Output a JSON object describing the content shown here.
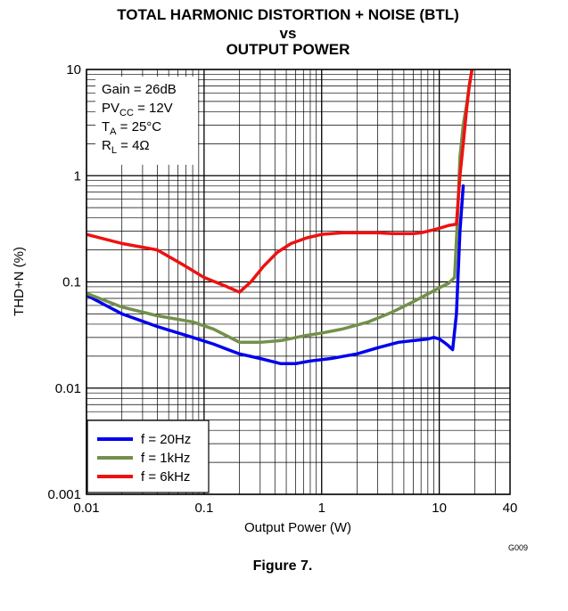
{
  "chart_data": {
    "type": "line",
    "title_lines": [
      "TOTAL HARMONIC DISTORTION + NOISE (BTL)",
      "vs",
      "OUTPUT POWER"
    ],
    "xlabel": "Output Power (W)",
    "ylabel": "THD+N (%)",
    "x_scale": "log",
    "y_scale": "log",
    "xlim": [
      0.01,
      40
    ],
    "ylim": [
      0.001,
      10
    ],
    "x_ticks": [
      0.01,
      0.1,
      1,
      10,
      40
    ],
    "x_tick_labels": [
      "0.01",
      "0.1",
      "1",
      "10",
      "40"
    ],
    "y_ticks": [
      0.001,
      0.01,
      0.1,
      1,
      10
    ],
    "y_tick_labels": [
      "0.001",
      "0.01",
      "0.1",
      "1",
      "10"
    ],
    "grid": true,
    "legend_position": "bottom-left",
    "conditions": {
      "gain": {
        "prefix": "Gain = ",
        "value": "26dB"
      },
      "pvcc": {
        "main": "PV",
        "sub": "CC",
        "rest": " = 12V"
      },
      "ta": {
        "main": "T",
        "sub": "A",
        "rest": " = 25°C"
      },
      "rl": {
        "main": "R",
        "sub": "L",
        "rest": " = 4Ω"
      }
    },
    "series": [
      {
        "name": "f = 20Hz",
        "color": "#0000ee",
        "points": [
          [
            0.01,
            0.075
          ],
          [
            0.02,
            0.05
          ],
          [
            0.04,
            0.038
          ],
          [
            0.08,
            0.03
          ],
          [
            0.12,
            0.026
          ],
          [
            0.2,
            0.021
          ],
          [
            0.3,
            0.019
          ],
          [
            0.45,
            0.017
          ],
          [
            0.6,
            0.017
          ],
          [
            0.8,
            0.018
          ],
          [
            1.2,
            0.019
          ],
          [
            2,
            0.021
          ],
          [
            3,
            0.024
          ],
          [
            4.5,
            0.027
          ],
          [
            6,
            0.028
          ],
          [
            8,
            0.029
          ],
          [
            9,
            0.03
          ],
          [
            10,
            0.029
          ],
          [
            11,
            0.027
          ],
          [
            12,
            0.025
          ],
          [
            13,
            0.023
          ],
          [
            14,
            0.05
          ],
          [
            15,
            0.3
          ],
          [
            16,
            0.8
          ]
        ]
      },
      {
        "name": "f = 1kHz",
        "color": "#73904a",
        "points": [
          [
            0.01,
            0.078
          ],
          [
            0.02,
            0.058
          ],
          [
            0.04,
            0.048
          ],
          [
            0.08,
            0.042
          ],
          [
            0.12,
            0.036
          ],
          [
            0.2,
            0.027
          ],
          [
            0.3,
            0.027
          ],
          [
            0.45,
            0.028
          ],
          [
            0.7,
            0.031
          ],
          [
            1,
            0.033
          ],
          [
            1.5,
            0.036
          ],
          [
            2.5,
            0.042
          ],
          [
            4,
            0.052
          ],
          [
            6,
            0.065
          ],
          [
            8,
            0.077
          ],
          [
            10,
            0.088
          ],
          [
            12,
            0.097
          ],
          [
            13.5,
            0.11
          ],
          [
            14.3,
            0.4
          ],
          [
            15,
            1.5
          ],
          [
            16,
            3.0
          ],
          [
            17,
            4.5
          ],
          [
            18,
            7.0
          ],
          [
            19,
            10
          ]
        ]
      },
      {
        "name": "f = 6kHz",
        "color": "#ee1111",
        "points": [
          [
            0.01,
            0.28
          ],
          [
            0.02,
            0.23
          ],
          [
            0.04,
            0.2
          ],
          [
            0.07,
            0.14
          ],
          [
            0.1,
            0.11
          ],
          [
            0.15,
            0.092
          ],
          [
            0.2,
            0.08
          ],
          [
            0.25,
            0.1
          ],
          [
            0.32,
            0.14
          ],
          [
            0.42,
            0.19
          ],
          [
            0.55,
            0.23
          ],
          [
            0.75,
            0.26
          ],
          [
            1,
            0.28
          ],
          [
            1.5,
            0.29
          ],
          [
            2,
            0.29
          ],
          [
            3,
            0.29
          ],
          [
            4,
            0.285
          ],
          [
            5,
            0.285
          ],
          [
            6,
            0.285
          ],
          [
            7,
            0.29
          ],
          [
            8,
            0.3
          ],
          [
            9,
            0.31
          ],
          [
            10,
            0.32
          ],
          [
            11,
            0.33
          ],
          [
            12,
            0.34
          ],
          [
            13,
            0.345
          ],
          [
            14,
            0.35
          ],
          [
            15,
            1.0
          ],
          [
            16,
            2.0
          ],
          [
            17,
            4.0
          ],
          [
            18,
            7.0
          ],
          [
            19,
            10
          ]
        ]
      }
    ],
    "figure_code": "G009",
    "caption": "Figure 7."
  }
}
